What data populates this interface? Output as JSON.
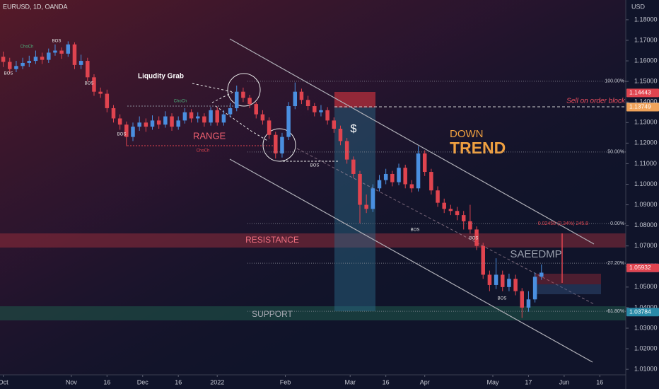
{
  "chart_data": {
    "type": "candlestick",
    "title": "EURUSD, 1D, OANDA",
    "currency": "USD",
    "up_color": "#4a8fe0",
    "down_color": "#e0444f",
    "xlim": [
      -1,
      192
    ],
    "ylim": [
      1.0073,
      1.1896
    ],
    "xticks": [
      {
        "value": 0,
        "label": "Oct"
      },
      {
        "value": 21,
        "label": "Nov"
      },
      {
        "value": 32,
        "label": "16"
      },
      {
        "value": 43,
        "label": "Dec"
      },
      {
        "value": 54,
        "label": "16"
      },
      {
        "value": 66,
        "label": "2022"
      },
      {
        "value": 87,
        "label": "Feb"
      },
      {
        "value": 107,
        "label": "Mar"
      },
      {
        "value": 118,
        "label": "16"
      },
      {
        "value": 130,
        "label": "Apr"
      },
      {
        "value": 151,
        "label": "May"
      },
      {
        "value": 162,
        "label": "17"
      },
      {
        "value": 173,
        "label": "Jun"
      },
      {
        "value": 184,
        "label": "16"
      }
    ],
    "yticks": [
      {
        "value": 1.18,
        "label": "1.18000"
      },
      {
        "value": 1.17,
        "label": "1.17000"
      },
      {
        "value": 1.16,
        "label": "1.16000"
      },
      {
        "value": 1.15,
        "label": "1.15000"
      },
      {
        "value": 1.14,
        "label": "1.14000"
      },
      {
        "value": 1.13,
        "label": "1.13000"
      },
      {
        "value": 1.12,
        "label": "1.12000"
      },
      {
        "value": 1.11,
        "label": "1.11000"
      },
      {
        "value": 1.1,
        "label": "1.10000"
      },
      {
        "value": 1.09,
        "label": "1.09000"
      },
      {
        "value": 1.08,
        "label": "1.08000"
      },
      {
        "value": 1.07,
        "label": "1.07000"
      },
      {
        "value": 1.06,
        "label": "1.06000"
      },
      {
        "value": 1.05,
        "label": "1.05000"
      },
      {
        "value": 1.04,
        "label": "1.04000"
      },
      {
        "value": 1.03,
        "label": "1.03000"
      },
      {
        "value": 1.02,
        "label": "1.02000"
      },
      {
        "value": 1.01,
        "label": "1.01000"
      }
    ],
    "x": [
      0,
      2,
      4,
      6,
      8,
      10,
      12,
      14,
      16,
      18,
      20,
      22,
      24,
      26,
      28,
      30,
      32,
      34,
      36,
      38,
      40,
      42,
      44,
      46,
      48,
      50,
      52,
      54,
      56,
      58,
      60,
      62,
      64,
      66,
      68,
      70,
      72,
      74,
      76,
      78,
      80,
      82,
      84,
      86,
      88,
      90,
      92,
      94,
      96,
      98,
      100,
      102,
      104,
      106,
      108,
      110,
      112,
      114,
      116,
      118,
      120,
      122,
      124,
      126,
      128,
      130,
      132,
      134,
      136,
      138,
      140,
      142,
      144,
      146,
      148,
      150,
      152,
      154,
      156,
      158,
      160,
      162,
      164,
      166
    ],
    "open": [
      1.162,
      1.1595,
      1.156,
      1.1575,
      1.159,
      1.16,
      1.162,
      1.1605,
      1.164,
      1.165,
      1.1635,
      1.168,
      1.158,
      1.16,
      1.152,
      1.145,
      1.144,
      1.137,
      1.132,
      1.129,
      1.123,
      1.128,
      1.13,
      1.128,
      1.131,
      1.129,
      1.133,
      1.128,
      1.131,
      1.135,
      1.132,
      1.133,
      1.13,
      1.136,
      1.13,
      1.134,
      1.137,
      1.145,
      1.142,
      1.139,
      1.134,
      1.131,
      1.124,
      1.115,
      1.123,
      1.138,
      1.145,
      1.141,
      1.138,
      1.135,
      1.136,
      1.131,
      1.127,
      1.121,
      1.112,
      1.105,
      1.09,
      1.088,
      1.098,
      1.102,
      1.105,
      1.101,
      1.108,
      1.1,
      1.098,
      1.115,
      1.106,
      1.097,
      1.091,
      1.088,
      1.087,
      1.085,
      1.082,
      1.078,
      1.07,
      1.056,
      1.051,
      1.056,
      1.05,
      1.054,
      1.048,
      1.04,
      1.044,
      1.055
    ],
    "high": [
      1.1645,
      1.1615,
      1.16,
      1.1615,
      1.1625,
      1.165,
      1.164,
      1.166,
      1.168,
      1.1665,
      1.1695,
      1.169,
      1.163,
      1.1615,
      1.1535,
      1.147,
      1.146,
      1.1385,
      1.134,
      1.1305,
      1.13,
      1.133,
      1.132,
      1.1335,
      1.133,
      1.1355,
      1.1345,
      1.133,
      1.137,
      1.1365,
      1.135,
      1.1345,
      1.1375,
      1.1375,
      1.136,
      1.1395,
      1.148,
      1.147,
      1.1435,
      1.14,
      1.136,
      1.1325,
      1.1255,
      1.125,
      1.14,
      1.1495,
      1.1465,
      1.143,
      1.1395,
      1.1385,
      1.1375,
      1.1325,
      1.1285,
      1.1225,
      1.1135,
      1.1065,
      1.095,
      1.1,
      1.1045,
      1.1075,
      1.1065,
      1.11,
      1.1095,
      1.102,
      1.1185,
      1.1165,
      1.1075,
      1.099,
      1.093,
      1.09,
      1.089,
      1.087,
      1.09,
      1.0795,
      1.0715,
      1.058,
      1.064,
      1.058,
      1.0565,
      1.056,
      1.0495,
      1.048,
      1.057,
      1.061
    ],
    "low": [
      1.157,
      1.154,
      1.1545,
      1.156,
      1.157,
      1.1585,
      1.1585,
      1.159,
      1.1625,
      1.161,
      1.162,
      1.156,
      1.156,
      1.15,
      1.143,
      1.142,
      1.135,
      1.13,
      1.1265,
      1.1185,
      1.121,
      1.126,
      1.1255,
      1.1265,
      1.127,
      1.1275,
      1.126,
      1.1265,
      1.1295,
      1.13,
      1.13,
      1.128,
      1.1285,
      1.1285,
      1.1285,
      1.1325,
      1.1355,
      1.14,
      1.137,
      1.132,
      1.129,
      1.122,
      1.1125,
      1.113,
      1.1215,
      1.1365,
      1.139,
      1.136,
      1.133,
      1.133,
      1.129,
      1.125,
      1.119,
      1.11,
      1.103,
      1.081,
      1.086,
      1.0865,
      1.0965,
      1.1,
      1.099,
      1.0995,
      1.098,
      1.096,
      1.0965,
      1.104,
      1.095,
      1.089,
      1.086,
      1.085,
      1.0825,
      1.078,
      1.076,
      1.068,
      1.054,
      1.048,
      1.049,
      1.048,
      1.048,
      1.046,
      1.035,
      1.038,
      1.0425,
      1.0535
    ],
    "close": [
      1.1595,
      1.156,
      1.1575,
      1.159,
      1.16,
      1.162,
      1.1605,
      1.164,
      1.165,
      1.1635,
      1.168,
      1.158,
      1.16,
      1.152,
      1.145,
      1.144,
      1.137,
      1.132,
      1.129,
      1.123,
      1.128,
      1.13,
      1.128,
      1.131,
      1.129,
      1.133,
      1.128,
      1.131,
      1.135,
      1.132,
      1.133,
      1.13,
      1.136,
      1.13,
      1.134,
      1.137,
      1.145,
      1.142,
      1.139,
      1.134,
      1.131,
      1.124,
      1.115,
      1.123,
      1.138,
      1.145,
      1.141,
      1.138,
      1.135,
      1.136,
      1.131,
      1.127,
      1.121,
      1.112,
      1.105,
      1.09,
      1.088,
      1.098,
      1.102,
      1.105,
      1.101,
      1.108,
      1.1,
      1.098,
      1.115,
      1.106,
      1.097,
      1.091,
      1.088,
      1.087,
      1.085,
      1.082,
      1.078,
      1.07,
      1.056,
      1.051,
      1.056,
      1.05,
      1.054,
      1.048,
      1.04,
      1.044,
      1.055,
      1.057
    ],
    "levels": [
      {
        "value": 1.1501,
        "label": "100.00%"
      },
      {
        "value": 1.1157,
        "label": "50.00%"
      },
      {
        "value": 1.0809,
        "label": "0.00%"
      },
      {
        "value": 1.0616,
        "label": "-27.20%"
      },
      {
        "value": 1.0382,
        "label": "-61.80%"
      }
    ],
    "level_color": "#8a8d99",
    "fib_note": "0.02458 (2.34%) 245.8",
    "price_tags": [
      {
        "value": 1.14443,
        "label": "1.14443",
        "color": "#e0444f"
      },
      {
        "value": 1.13763,
        "label": "1.13763",
        "color": "#e8e8ee"
      },
      {
        "value": 1.13749,
        "label": "1.13749",
        "color": "#f0a35a"
      },
      {
        "value": 1.05933,
        "label": "1.05933",
        "color": "#4a8fe0"
      },
      {
        "value": 1.05932,
        "label": "1.05932",
        "color": "#e0444f"
      },
      {
        "value": 1.03784,
        "label": "1.03784",
        "color": "#2a8aa8"
      }
    ],
    "labels": [
      "Liqudity Grab",
      "RANGE",
      "DOWN",
      "TREND",
      "RESISTANCE",
      "SUPPORT",
      "SAEEDMP",
      "Sell on order block",
      "$",
      "BOS",
      "BOS",
      "BOS",
      "BOS",
      "BOS",
      "BOS",
      "BOS",
      "BOS",
      "ChoCh",
      "ChoCh",
      "ChoCh"
    ]
  }
}
